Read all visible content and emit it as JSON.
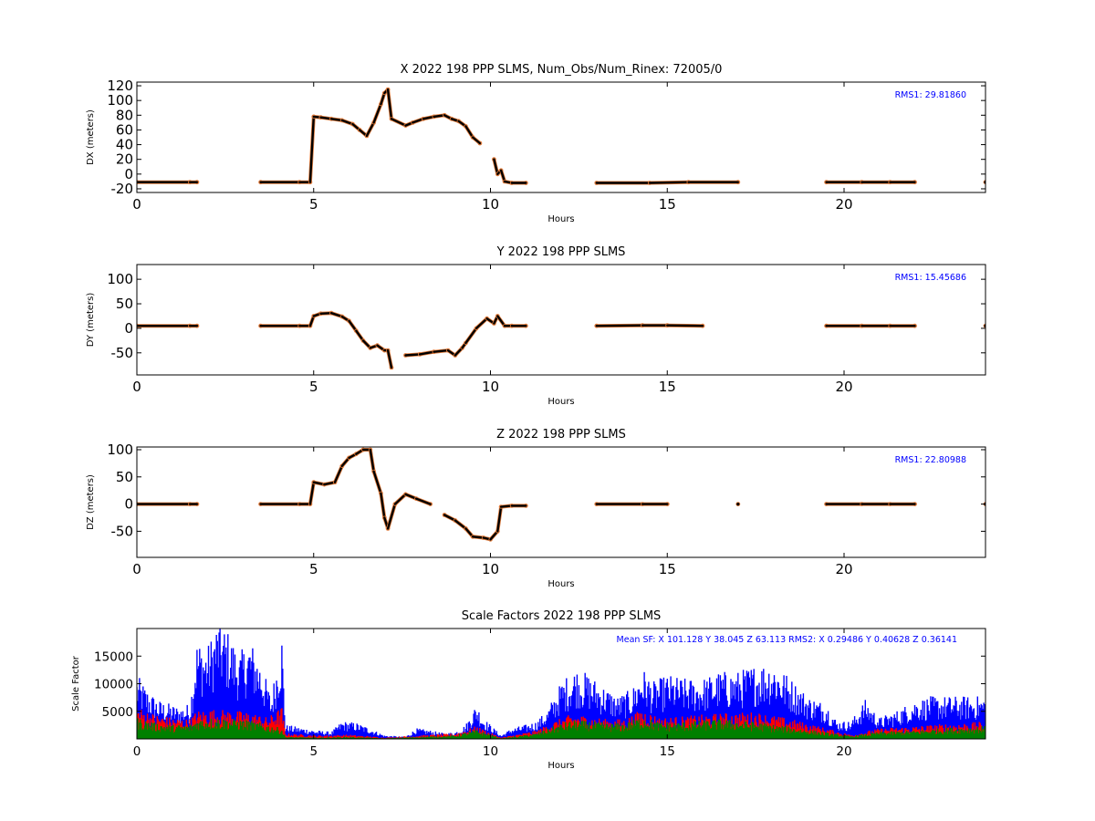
{
  "colors": {
    "primary": "#000000",
    "secondary": "#e07b3c",
    "note_blue": "#0000ff",
    "sf_x": "#0000ff",
    "sf_y": "#008000",
    "sf_z": "#ff0000"
  },
  "chart_data": [
    {
      "type": "scatter",
      "title": "X 2022 198 PPP  SLMS, Num_Obs/Num_Rinex: 72005/0",
      "xlabel": "Hours",
      "ylabel": "DX (meters)",
      "xlim": [
        0,
        24
      ],
      "ylim": [
        -25,
        125
      ],
      "xticks": [
        0,
        5,
        10,
        15,
        20
      ],
      "yticks": [
        -20,
        0,
        20,
        40,
        60,
        80,
        100,
        120
      ],
      "annotation": "RMS1: 29.81860",
      "series": [
        {
          "values": [
            [
              0,
              -11
            ],
            [
              1.5,
              -11
            ],
            [
              1.7,
              -11
            ],
            [
              3.5,
              -11
            ],
            [
              4.6,
              -11
            ],
            [
              4.9,
              -11
            ],
            [
              5.0,
              78
            ],
            [
              5.2,
              77
            ],
            [
              5.5,
              75
            ],
            [
              5.8,
              73
            ],
            [
              6.1,
              68
            ],
            [
              6.3,
              60
            ],
            [
              6.5,
              52
            ],
            [
              6.7,
              70
            ],
            [
              6.9,
              95
            ],
            [
              7.0,
              110
            ],
            [
              7.1,
              115
            ],
            [
              7.2,
              75
            ],
            [
              7.6,
              66
            ],
            [
              7.8,
              70
            ],
            [
              8.1,
              75
            ],
            [
              8.4,
              78
            ],
            [
              8.7,
              80
            ],
            [
              8.9,
              75
            ],
            [
              9.1,
              72
            ],
            [
              9.3,
              65
            ],
            [
              9.5,
              50
            ],
            [
              9.7,
              42
            ],
            [
              10.1,
              20
            ],
            [
              10.2,
              0
            ],
            [
              10.3,
              5
            ],
            [
              10.4,
              -10
            ],
            [
              10.6,
              -12
            ],
            [
              11,
              -12
            ],
            [
              13,
              -12
            ],
            [
              14.5,
              -12
            ],
            [
              15.6,
              -11
            ],
            [
              17,
              -11
            ],
            [
              19.5,
              -11
            ],
            [
              20.5,
              -11
            ],
            [
              21.3,
              -11
            ],
            [
              22,
              -11
            ],
            [
              24,
              -11
            ]
          ]
        }
      ]
    },
    {
      "type": "scatter",
      "title": "Y 2022 198 PPP  SLMS",
      "xlabel": "Hours",
      "ylabel": "DY (meters)",
      "xlim": [
        0,
        24
      ],
      "ylim": [
        -95,
        130
      ],
      "xticks": [
        0,
        5,
        10,
        15,
        20
      ],
      "yticks": [
        -50,
        0,
        50,
        100
      ],
      "annotation": "RMS1: 15.45686",
      "series": [
        {
          "values": [
            [
              0,
              5
            ],
            [
              1.5,
              5
            ],
            [
              1.7,
              5
            ],
            [
              3.5,
              5
            ],
            [
              4.6,
              5
            ],
            [
              4.9,
              5
            ],
            [
              5.0,
              25
            ],
            [
              5.2,
              30
            ],
            [
              5.5,
              31
            ],
            [
              5.8,
              24
            ],
            [
              6.0,
              15
            ],
            [
              6.2,
              -5
            ],
            [
              6.4,
              -25
            ],
            [
              6.6,
              -40
            ],
            [
              6.8,
              -35
            ],
            [
              7.0,
              -45
            ],
            [
              7.1,
              -45
            ],
            [
              7.2,
              -80
            ],
            [
              7.6,
              -55
            ],
            [
              8.0,
              -53
            ],
            [
              8.4,
              -48
            ],
            [
              8.8,
              -45
            ],
            [
              9.0,
              -55
            ],
            [
              9.2,
              -40
            ],
            [
              9.3,
              -30
            ],
            [
              9.6,
              0
            ],
            [
              9.9,
              20
            ],
            [
              10.1,
              10
            ],
            [
              10.2,
              25
            ],
            [
              10.4,
              5
            ],
            [
              10.6,
              5
            ],
            [
              11,
              5
            ],
            [
              13,
              5
            ],
            [
              14.3,
              6
            ],
            [
              15,
              6
            ],
            [
              16,
              5
            ],
            [
              19.5,
              5
            ],
            [
              20.5,
              5
            ],
            [
              21.3,
              5
            ],
            [
              22,
              5
            ],
            [
              24,
              5
            ]
          ]
        }
      ]
    },
    {
      "type": "scatter",
      "title": "Z 2022 198 PPP  SLMS",
      "xlabel": "Hours",
      "ylabel": "DZ (meters)",
      "xlim": [
        0,
        24
      ],
      "ylim": [
        -98,
        105
      ],
      "xticks": [
        0,
        5,
        10,
        15,
        20
      ],
      "yticks": [
        -50,
        0,
        50,
        100
      ],
      "annotation": "RMS1: 22.80988",
      "series": [
        {
          "values": [
            [
              0,
              0
            ],
            [
              1.5,
              0
            ],
            [
              1.7,
              0
            ],
            [
              3.5,
              0
            ],
            [
              4.6,
              0
            ],
            [
              4.9,
              0
            ],
            [
              5.0,
              40
            ],
            [
              5.3,
              36
            ],
            [
              5.6,
              40
            ],
            [
              5.8,
              70
            ],
            [
              6.0,
              85
            ],
            [
              6.2,
              92
            ],
            [
              6.4,
              100
            ],
            [
              6.6,
              100
            ],
            [
              6.7,
              60
            ],
            [
              6.9,
              20
            ],
            [
              7.0,
              -25
            ],
            [
              7.1,
              -45
            ],
            [
              7.3,
              0
            ],
            [
              7.6,
              18
            ],
            [
              7.9,
              10
            ],
            [
              8.3,
              0
            ],
            [
              8.7,
              -20
            ],
            [
              9.0,
              -30
            ],
            [
              9.3,
              -45
            ],
            [
              9.5,
              -60
            ],
            [
              9.8,
              -62
            ],
            [
              10.0,
              -65
            ],
            [
              10.2,
              -50
            ],
            [
              10.3,
              -5
            ],
            [
              10.6,
              -3
            ],
            [
              11,
              -3
            ],
            [
              13,
              0
            ],
            [
              14.3,
              0
            ],
            [
              15,
              0
            ],
            [
              17,
              0
            ],
            [
              19.5,
              0
            ],
            [
              20.5,
              0
            ],
            [
              21.3,
              0
            ],
            [
              22,
              0
            ],
            [
              24,
              0
            ]
          ]
        }
      ]
    },
    {
      "type": "scatter",
      "title": "Scale Factors 2022 198 PPP  SLMS",
      "xlabel": "Hours",
      "ylabel": "Scale Factor",
      "xlim": [
        0,
        24
      ],
      "ylim": [
        0,
        20000
      ],
      "xticks": [
        0,
        5,
        10,
        15,
        20
      ],
      "yticks": [
        5000,
        10000,
        15000
      ],
      "annotation": "Mean SF: X 101.128   Y  38.045   Z  63.113  RMS2: X  0.29486   Y  0.40628   Z  0.36141",
      "series": [
        {
          "values": [
            [
              0,
              9000
            ],
            [
              0.3,
              7000
            ],
            [
              0.6,
              5500
            ],
            [
              0.9,
              5000
            ],
            [
              1.2,
              4500
            ],
            [
              1.5,
              5000
            ],
            [
              1.7,
              14000
            ],
            [
              2.0,
              13000
            ],
            [
              2.3,
              17000
            ],
            [
              2.6,
              15000
            ],
            [
              2.9,
              12000
            ],
            [
              3.2,
              14000
            ],
            [
              3.5,
              11000
            ],
            [
              3.8,
              6000
            ],
            [
              4.1,
              15000
            ],
            [
              4.2,
              2000
            ],
            [
              5.1,
              1200
            ],
            [
              5.5,
              1000
            ],
            [
              5.8,
              2500
            ],
            [
              6.2,
              2300
            ],
            [
              6.6,
              1500
            ],
            [
              7.0,
              500
            ],
            [
              7.6,
              300
            ],
            [
              7.9,
              1500
            ],
            [
              8.3,
              1200
            ],
            [
              8.7,
              800
            ],
            [
              9.0,
              1000
            ],
            [
              9.3,
              2000
            ],
            [
              9.6,
              5000
            ],
            [
              9.8,
              3000
            ],
            [
              10.3,
              500
            ],
            [
              10.6,
              1500
            ],
            [
              11,
              2000
            ],
            [
              11.3,
              2500
            ],
            [
              11.6,
              4000
            ],
            [
              12.0,
              8000
            ],
            [
              12.4,
              10000
            ],
            [
              12.8,
              9000
            ],
            [
              13.2,
              7500
            ],
            [
              13.6,
              6000
            ],
            [
              14.0,
              7000
            ],
            [
              14.3,
              10000
            ],
            [
              14.6,
              8000
            ],
            [
              15.0,
              9000
            ],
            [
              15.5,
              8500
            ],
            [
              16,
              8500
            ],
            [
              16.5,
              9500
            ],
            [
              17,
              9500
            ],
            [
              17.5,
              10500
            ],
            [
              18,
              11000
            ],
            [
              18.5,
              8500
            ],
            [
              19,
              6000
            ],
            [
              19.5,
              5000
            ],
            [
              19.8,
              2500
            ],
            [
              20.2,
              2500
            ],
            [
              20.6,
              5500
            ],
            [
              21,
              3000
            ],
            [
              21.5,
              4000
            ],
            [
              22,
              5500
            ],
            [
              22.5,
              6000
            ],
            [
              23,
              6000
            ],
            [
              23.5,
              6000
            ],
            [
              24,
              6000
            ]
          ]
        },
        {
          "values": [
            [
              0,
              4500
            ],
            [
              0.5,
              3500
            ],
            [
              1,
              3000
            ],
            [
              1.5,
              2800
            ],
            [
              1.7,
              4000
            ],
            [
              2.2,
              4200
            ],
            [
              2.7,
              4000
            ],
            [
              3.2,
              3800
            ],
            [
              3.7,
              3000
            ],
            [
              4.1,
              4500
            ],
            [
              4.2,
              800
            ],
            [
              5.1,
              500
            ],
            [
              6,
              600
            ],
            [
              7,
              200
            ],
            [
              8,
              500
            ],
            [
              9,
              800
            ],
            [
              9.6,
              1800
            ],
            [
              10.3,
              200
            ],
            [
              10.8,
              700
            ],
            [
              11.3,
              1200
            ],
            [
              11.8,
              2500
            ],
            [
              12.3,
              3500
            ],
            [
              12.8,
              3200
            ],
            [
              13.3,
              2800
            ],
            [
              13.8,
              2800
            ],
            [
              14.3,
              4200
            ],
            [
              14.8,
              3000
            ],
            [
              15.5,
              3200
            ],
            [
              16.5,
              3600
            ],
            [
              17.5,
              3800
            ],
            [
              18.5,
              2800
            ],
            [
              19.5,
              1500
            ],
            [
              20.2,
              600
            ],
            [
              21,
              1500
            ],
            [
              22,
              1800
            ],
            [
              23,
              2200
            ],
            [
              24,
              2400
            ]
          ]
        },
        {
          "values": [
            [
              0,
              3000
            ],
            [
              0.5,
              2300
            ],
            [
              1,
              2000
            ],
            [
              1.5,
              2000
            ],
            [
              1.7,
              2800
            ],
            [
              2.2,
              3000
            ],
            [
              2.7,
              2800
            ],
            [
              3.2,
              2600
            ],
            [
              3.7,
              2000
            ],
            [
              4.1,
              1500
            ],
            [
              4.2,
              300
            ],
            [
              5.1,
              200
            ],
            [
              6,
              300
            ],
            [
              7,
              100
            ],
            [
              8,
              300
            ],
            [
              9,
              500
            ],
            [
              9.6,
              1300
            ],
            [
              10.3,
              100
            ],
            [
              10.8,
              400
            ],
            [
              11.3,
              800
            ],
            [
              11.8,
              1800
            ],
            [
              12.3,
              2600
            ],
            [
              12.8,
              2500
            ],
            [
              13.3,
              2200
            ],
            [
              13.8,
              2200
            ],
            [
              14.3,
              3200
            ],
            [
              14.8,
              2300
            ],
            [
              15.5,
              2400
            ],
            [
              16.5,
              2800
            ],
            [
              17.5,
              2400
            ],
            [
              18.5,
              1700
            ],
            [
              19.5,
              900
            ],
            [
              20.2,
              400
            ],
            [
              21,
              1000
            ],
            [
              22,
              1200
            ],
            [
              23,
              1600
            ],
            [
              24,
              1800
            ]
          ]
        }
      ]
    }
  ]
}
